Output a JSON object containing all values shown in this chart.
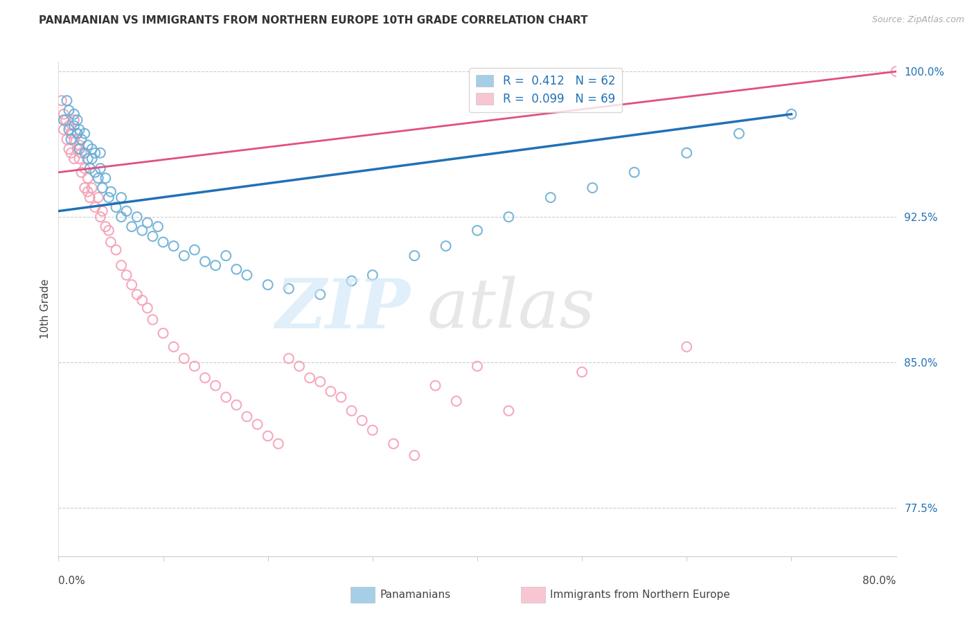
{
  "title": "PANAMANIAN VS IMMIGRANTS FROM NORTHERN EUROPE 10TH GRADE CORRELATION CHART",
  "source_text": "Source: ZipAtlas.com",
  "ylabel": "10th Grade",
  "xlim": [
    0.0,
    0.8
  ],
  "ylim": [
    0.75,
    1.005
  ],
  "ytick_positions": [
    0.775,
    0.85,
    0.925,
    1.0
  ],
  "ytick_labels": [
    "77.5%",
    "85.0%",
    "92.5%",
    "100.0%"
  ],
  "grid_color": "#cccccc",
  "background_color": "#ffffff",
  "blue_color": "#6baed6",
  "pink_color": "#f4a0b5",
  "blue_line_color": "#2171b5",
  "pink_line_color": "#e05080",
  "blue_scatter_x": [
    0.005,
    0.008,
    0.01,
    0.01,
    0.012,
    0.015,
    0.015,
    0.018,
    0.018,
    0.02,
    0.02,
    0.022,
    0.025,
    0.025,
    0.028,
    0.028,
    0.03,
    0.032,
    0.032,
    0.035,
    0.035,
    0.038,
    0.04,
    0.04,
    0.042,
    0.045,
    0.048,
    0.05,
    0.055,
    0.06,
    0.06,
    0.065,
    0.07,
    0.075,
    0.08,
    0.085,
    0.09,
    0.095,
    0.1,
    0.11,
    0.12,
    0.13,
    0.14,
    0.15,
    0.16,
    0.17,
    0.18,
    0.2,
    0.22,
    0.25,
    0.28,
    0.3,
    0.34,
    0.37,
    0.4,
    0.43,
    0.47,
    0.51,
    0.55,
    0.6,
    0.65,
    0.7
  ],
  "blue_scatter_y": [
    0.975,
    0.985,
    0.97,
    0.98,
    0.965,
    0.972,
    0.978,
    0.968,
    0.975,
    0.96,
    0.97,
    0.965,
    0.958,
    0.968,
    0.955,
    0.962,
    0.95,
    0.96,
    0.955,
    0.948,
    0.958,
    0.945,
    0.95,
    0.958,
    0.94,
    0.945,
    0.935,
    0.938,
    0.93,
    0.925,
    0.935,
    0.928,
    0.92,
    0.925,
    0.918,
    0.922,
    0.915,
    0.92,
    0.912,
    0.91,
    0.905,
    0.908,
    0.902,
    0.9,
    0.905,
    0.898,
    0.895,
    0.89,
    0.888,
    0.885,
    0.892,
    0.895,
    0.905,
    0.91,
    0.918,
    0.925,
    0.935,
    0.94,
    0.948,
    0.958,
    0.968,
    0.978
  ],
  "pink_scatter_x": [
    0.003,
    0.005,
    0.005,
    0.007,
    0.008,
    0.01,
    0.01,
    0.012,
    0.012,
    0.015,
    0.015,
    0.015,
    0.018,
    0.018,
    0.02,
    0.02,
    0.022,
    0.022,
    0.025,
    0.025,
    0.028,
    0.028,
    0.03,
    0.032,
    0.035,
    0.038,
    0.04,
    0.042,
    0.045,
    0.048,
    0.05,
    0.055,
    0.06,
    0.065,
    0.07,
    0.075,
    0.08,
    0.085,
    0.09,
    0.1,
    0.11,
    0.12,
    0.13,
    0.14,
    0.15,
    0.16,
    0.17,
    0.18,
    0.19,
    0.2,
    0.21,
    0.22,
    0.23,
    0.24,
    0.25,
    0.26,
    0.27,
    0.28,
    0.29,
    0.3,
    0.32,
    0.34,
    0.36,
    0.38,
    0.4,
    0.43,
    0.5,
    0.6,
    0.8
  ],
  "pink_scatter_y": [
    0.985,
    0.978,
    0.97,
    0.975,
    0.965,
    0.972,
    0.96,
    0.968,
    0.958,
    0.965,
    0.975,
    0.955,
    0.96,
    0.968,
    0.955,
    0.962,
    0.948,
    0.958,
    0.95,
    0.94,
    0.945,
    0.938,
    0.935,
    0.94,
    0.93,
    0.935,
    0.925,
    0.928,
    0.92,
    0.918,
    0.912,
    0.908,
    0.9,
    0.895,
    0.89,
    0.885,
    0.882,
    0.878,
    0.872,
    0.865,
    0.858,
    0.852,
    0.848,
    0.842,
    0.838,
    0.832,
    0.828,
    0.822,
    0.818,
    0.812,
    0.808,
    0.852,
    0.848,
    0.842,
    0.84,
    0.835,
    0.832,
    0.825,
    0.82,
    0.815,
    0.808,
    0.802,
    0.838,
    0.83,
    0.848,
    0.825,
    0.845,
    0.858,
    1.0
  ],
  "blue_trendline_x": [
    0.0,
    0.7
  ],
  "blue_trendline_y": [
    0.928,
    0.978
  ],
  "pink_trendline_x": [
    0.0,
    0.8
  ],
  "pink_trendline_y": [
    0.948,
    1.0
  ],
  "legend_label1": "R =  0.412   N = 62",
  "legend_label2": "R =  0.099   N = 69",
  "watermark_zip": "ZIP",
  "watermark_atlas": "atlas"
}
